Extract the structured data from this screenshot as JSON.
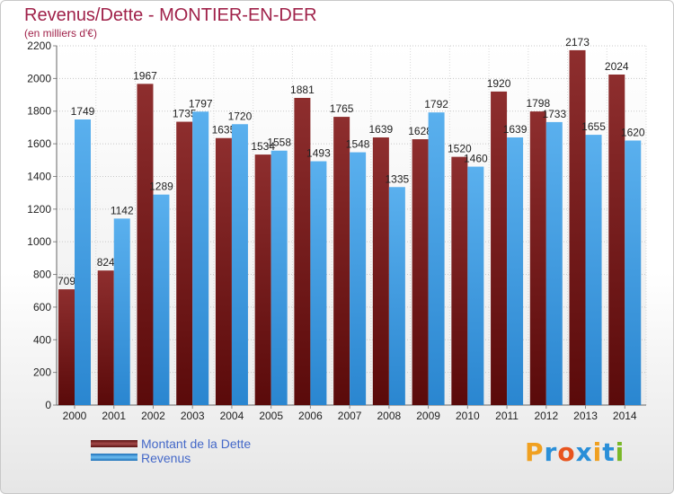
{
  "title": "Revenus/Dette - MONTIER-EN-DER",
  "subtitle": "(en milliers d'€)",
  "logo": {
    "letters": [
      "P",
      "r",
      "o",
      "x",
      "i",
      "t",
      "i"
    ],
    "colors": [
      "#f0a020",
      "#2a8fd8",
      "#e8541e",
      "#2a8fd8",
      "#f0a020",
      "#2a8fd8",
      "#7ab828"
    ]
  },
  "colors": {
    "dette": "#7d1e1e",
    "revenus": "#3e9be0",
    "title": "#a0224a"
  },
  "chart_data": {
    "type": "bar",
    "title": "Revenus/Dette - MONTIER-EN-DER",
    "ylabel": "(en milliers d'€)",
    "ylim": [
      0,
      2200
    ],
    "yticks": [
      0,
      200,
      400,
      600,
      800,
      1000,
      1200,
      1400,
      1600,
      1800,
      2000,
      2200
    ],
    "grid": true,
    "legend": "bottom-left",
    "categories": [
      "2000",
      "2001",
      "2002",
      "2003",
      "2004",
      "2005",
      "2006",
      "2007",
      "2008",
      "2009",
      "2010",
      "2011",
      "2012",
      "2013",
      "2014"
    ],
    "series": [
      {
        "name": "Montant de la Dette",
        "values": [
          709,
          824,
          1967,
          1735,
          1635,
          1534,
          1881,
          1765,
          1639,
          1628,
          1520,
          1920,
          1798,
          2173,
          2024
        ]
      },
      {
        "name": "Revenus",
        "values": [
          1749,
          1142,
          1289,
          1797,
          1720,
          1558,
          1493,
          1548,
          1335,
          1792,
          1460,
          1639,
          1733,
          1655,
          1620
        ]
      }
    ]
  }
}
